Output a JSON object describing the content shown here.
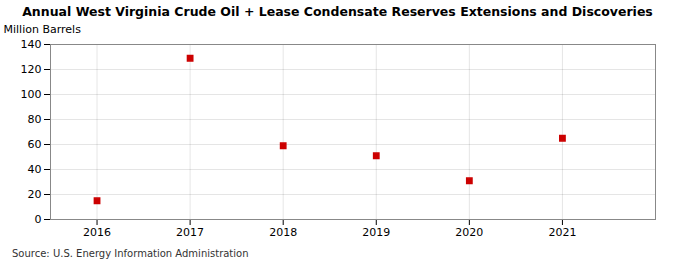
{
  "chart_data": {
    "type": "scatter",
    "title": "Annual West Virginia Crude Oil + Lease Condensate Reserves Extensions and Discoveries",
    "ylabel": "Million Barrels",
    "source": "Source: U.S. Energy Information Administration",
    "x": [
      2016,
      2017,
      2018,
      2019,
      2020,
      2021
    ],
    "values": [
      15,
      129,
      59,
      51,
      31,
      65
    ],
    "color": "#cc0000",
    "marker": "square",
    "xlim": [
      2015.5,
      2022.0
    ],
    "xticks": [
      2016,
      2017,
      2018,
      2019,
      2020,
      2021
    ],
    "ylim": [
      0,
      140
    ],
    "yticks": [
      0,
      20,
      40,
      60,
      80,
      100,
      120,
      140
    ],
    "grid": true
  }
}
